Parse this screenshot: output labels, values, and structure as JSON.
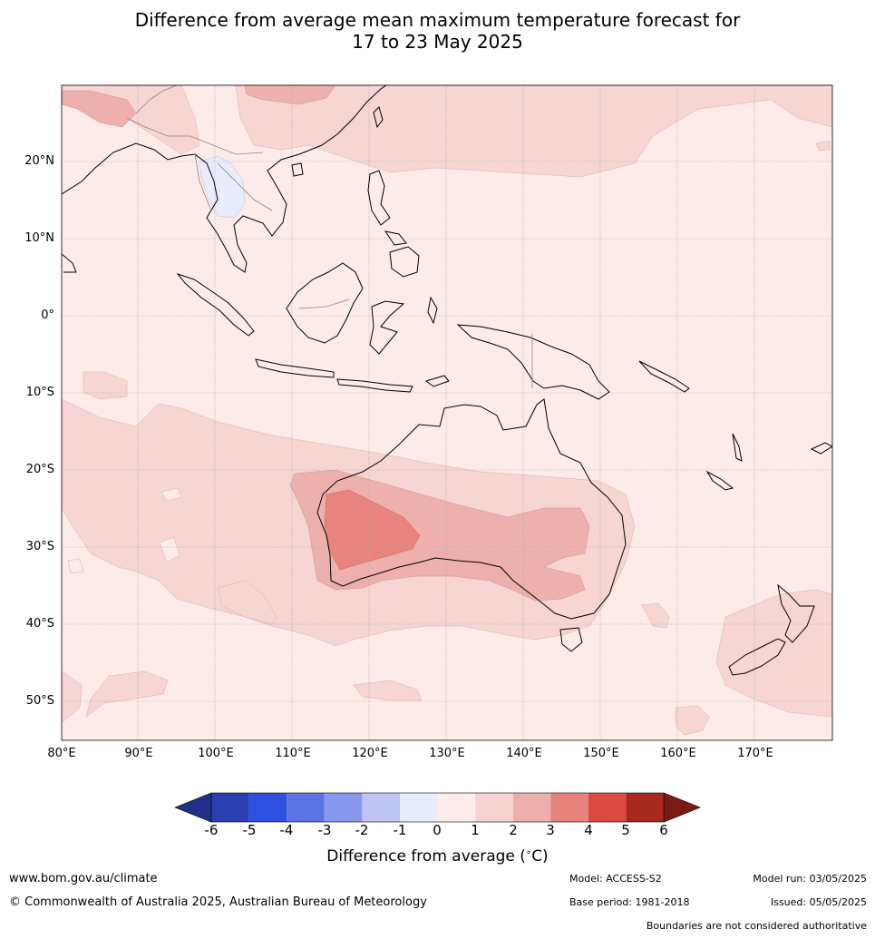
{
  "title_line1": "Difference from average mean maximum temperature forecast for",
  "title_line2": "17 to 23 May 2025",
  "lat_labels": [
    "20°N",
    "10°N",
    "0°",
    "10°S",
    "20°S",
    "30°S",
    "40°S",
    "50°S"
  ],
  "lon_labels": [
    "80°E",
    "90°E",
    "100°E",
    "110°E",
    "120°E",
    "130°E",
    "140°E",
    "150°E",
    "160°E",
    "170°E"
  ],
  "colorbar": {
    "ticks": [
      "-6",
      "-5",
      "-4",
      "-3",
      "-2",
      "-1",
      "0",
      "1",
      "2",
      "3",
      "4",
      "5",
      "6"
    ],
    "colors": [
      "#1f2f8a",
      "#2a3fb0",
      "#2f4fe0",
      "#5a74e4",
      "#8898ec",
      "#bfc6f4",
      "#e8ecfb",
      "#fdecea",
      "#f6d3d0",
      "#eeaeaa",
      "#e8837c",
      "#da4a3e",
      "#a8291f",
      "#7a1a14"
    ],
    "label": "Difference from average (°C)",
    "label_text": "Difference from average (",
    "label_unit": "C)"
  },
  "footer": {
    "website": "www.bom.gov.au/climate",
    "copyright": "© Commonwealth of Australia 2025, Australian Bureau of Meteorology",
    "model": "Model: ACCESS-S2",
    "base_period": "Base period: 1981-2018",
    "model_run": "Model run: 03/05/2025",
    "issued": "Issued: 05/05/2025",
    "disclaimer": "Boundaries are not considered authoritative"
  }
}
